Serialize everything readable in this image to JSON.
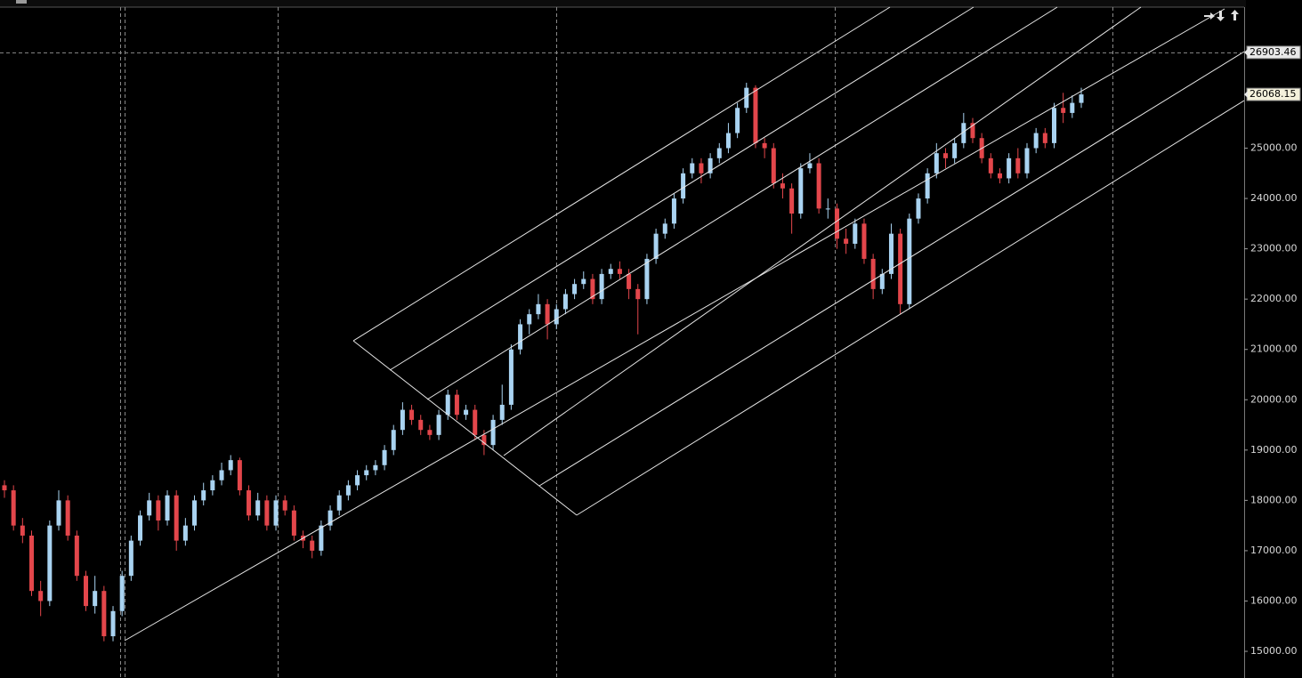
{
  "chart_data": {
    "type": "candlestick",
    "up_color": "#a9d3f1",
    "down_color": "#e3464b",
    "ylim": [
      14470,
      27803
    ],
    "yticks": [
      {
        "value": 15000,
        "label": "15000.00"
      },
      {
        "value": 16000,
        "label": "16000.00"
      },
      {
        "value": 17000,
        "label": "17000.00"
      },
      {
        "value": 18000,
        "label": "18000.00"
      },
      {
        "value": 19000,
        "label": "19000.00"
      },
      {
        "value": 20000,
        "label": "20000.00"
      },
      {
        "value": 21000,
        "label": "21000.00"
      },
      {
        "value": 22000,
        "label": "22000.00"
      },
      {
        "value": 23000,
        "label": "23000.00"
      },
      {
        "value": 24000,
        "label": "24000.00"
      },
      {
        "value": 25000,
        "label": "25000.00"
      }
    ],
    "markers": [
      26903.46,
      26068.15
    ],
    "open": [
      18300,
      18200,
      17500,
      17300,
      16200,
      16000,
      17500,
      18000,
      17300,
      16500,
      15900,
      16200,
      15300,
      15800,
      16500,
      17200,
      17700,
      18000,
      17600,
      18100,
      17200,
      17500,
      18000,
      18200,
      18400,
      18600,
      18800,
      18200,
      17700,
      18000,
      17500,
      18000,
      17800,
      17300,
      17200,
      17000,
      17500,
      17800,
      18100,
      18300,
      18500,
      18600,
      18700,
      19000,
      19400,
      19800,
      19600,
      19400,
      19300,
      19700,
      20100,
      19700,
      19800,
      19300,
      19100,
      19600,
      19900,
      21000,
      21500,
      21700,
      21900,
      21500,
      21800,
      22100,
      22300,
      22400,
      22000,
      22500,
      22600,
      22500,
      22200,
      22000,
      22800,
      23300,
      23500,
      24000,
      24500,
      24700,
      24500,
      24800,
      25000,
      25300,
      25800,
      26200,
      25100,
      25000,
      24300,
      24200,
      23700,
      24600,
      24700,
      23800,
      23800,
      23200,
      23100,
      23500,
      22800,
      22200,
      22500,
      23300,
      21900,
      23600,
      24000,
      24500,
      24900,
      24800,
      25100,
      25500,
      25200,
      24800,
      24500,
      24400,
      24800,
      24500,
      25000,
      25300,
      25100,
      25800,
      25700,
      25900
    ],
    "high": [
      18400,
      18300,
      17650,
      17400,
      16400,
      17600,
      18200,
      18100,
      17400,
      16600,
      16500,
      16300,
      15900,
      16600,
      17300,
      17800,
      18150,
      18100,
      18200,
      18200,
      17650,
      18100,
      18350,
      18500,
      18750,
      18900,
      18850,
      18300,
      18150,
      18100,
      18100,
      18100,
      17900,
      17400,
      17300,
      17600,
      17900,
      18200,
      18400,
      18600,
      18700,
      18800,
      19100,
      19500,
      19950,
      19900,
      19700,
      19500,
      19800,
      20200,
      20200,
      19900,
      19900,
      19400,
      19700,
      20300,
      21100,
      21600,
      21800,
      22100,
      22000,
      21900,
      22200,
      22400,
      22550,
      22500,
      22600,
      22700,
      22750,
      22600,
      22300,
      22900,
      23400,
      23600,
      24100,
      24600,
      24800,
      24800,
      24900,
      25100,
      25500,
      25900,
      26300,
      26250,
      25200,
      25100,
      24500,
      24300,
      24700,
      24900,
      24800,
      24000,
      23900,
      23400,
      23600,
      23600,
      22900,
      22600,
      23500,
      23400,
      23700,
      24100,
      24600,
      25100,
      25000,
      25200,
      25700,
      25600,
      25300,
      24900,
      24600,
      24900,
      25000,
      25100,
      25400,
      25400,
      25900,
      26100,
      26050,
      26200
    ],
    "low": [
      18050,
      17400,
      17150,
      16100,
      15700,
      15900,
      17400,
      17200,
      16400,
      15800,
      15750,
      15200,
      15200,
      15700,
      16400,
      17100,
      17600,
      17400,
      17500,
      17000,
      17100,
      17400,
      17900,
      18100,
      18300,
      18500,
      18100,
      17600,
      17600,
      17400,
      17400,
      17700,
      17200,
      17050,
      16850,
      16900,
      17400,
      17700,
      18000,
      18200,
      18400,
      18500,
      18600,
      18900,
      19300,
      19500,
      19300,
      19200,
      19200,
      19600,
      19600,
      19600,
      19200,
      18900,
      19000,
      19500,
      19800,
      20900,
      21300,
      21600,
      21200,
      21400,
      21700,
      22000,
      22200,
      21900,
      21900,
      22400,
      22400,
      22000,
      21300,
      21900,
      22700,
      23200,
      23400,
      23900,
      24400,
      24300,
      24400,
      24700,
      24900,
      25200,
      25700,
      25000,
      24800,
      24200,
      24000,
      23300,
      23600,
      24500,
      23700,
      23600,
      23000,
      22900,
      23000,
      22700,
      22000,
      22100,
      22400,
      21700,
      21800,
      23500,
      23900,
      24400,
      24600,
      24700,
      25000,
      25100,
      24700,
      24400,
      24300,
      24300,
      24400,
      24400,
      24900,
      25000,
      25000,
      25500,
      25600,
      25800
    ],
    "close": [
      18200,
      17500,
      17300,
      16200,
      16000,
      17500,
      18000,
      17300,
      16500,
      15900,
      16200,
      15300,
      15800,
      16500,
      17200,
      17700,
      18000,
      17600,
      18100,
      17200,
      17500,
      18000,
      18200,
      18400,
      18600,
      18800,
      18200,
      17700,
      18000,
      17500,
      18000,
      17800,
      17300,
      17200,
      17000,
      17500,
      17800,
      18100,
      18300,
      18500,
      18600,
      18700,
      19000,
      19400,
      19800,
      19600,
      19400,
      19300,
      19700,
      20100,
      19700,
      19800,
      19300,
      19100,
      19600,
      19900,
      21000,
      21500,
      21700,
      21900,
      21500,
      21800,
      22100,
      22300,
      22400,
      22000,
      22500,
      22600,
      22500,
      22200,
      22000,
      22800,
      23300,
      23500,
      24000,
      24500,
      24700,
      24500,
      24800,
      25000,
      25300,
      25800,
      26200,
      25100,
      25000,
      24300,
      24200,
      23700,
      24600,
      24700,
      23800,
      23800,
      23200,
      23100,
      23500,
      22800,
      22200,
      22500,
      23300,
      21900,
      23600,
      24000,
      24500,
      24900,
      24800,
      25100,
      25500,
      25200,
      24800,
      24500,
      24400,
      24800,
      24500,
      25000,
      25300,
      25100,
      25800,
      25700,
      25900,
      26068.15
    ]
  }
}
